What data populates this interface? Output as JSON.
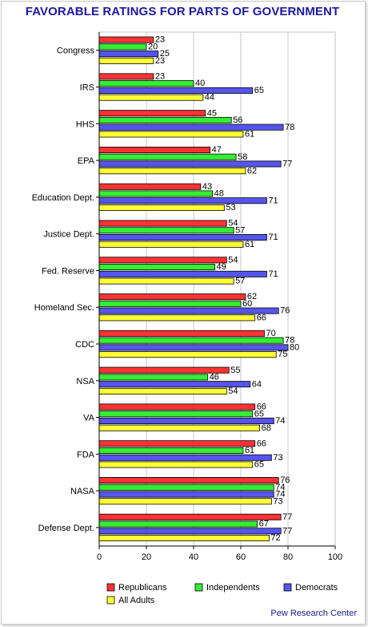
{
  "title": "FAVORABLE RATINGS FOR PARTS OF GOVERNMENT",
  "source": "Pew Research Center",
  "chart_data": {
    "type": "bar",
    "orientation": "horizontal",
    "categories": [
      "Congress",
      "IRS",
      "HHS",
      "EPA",
      "Education Dept.",
      "Justice Dept.",
      "Fed. Reserve",
      "Homeland Sec.",
      "CDC",
      "NSA",
      "VA",
      "FDA",
      "NASA",
      "Defense Dept."
    ],
    "series": [
      {
        "name": "Republicans",
        "color": "#ff3333",
        "values": [
          23,
          23,
          45,
          47,
          43,
          54,
          54,
          62,
          70,
          55,
          66,
          66,
          76,
          77
        ]
      },
      {
        "name": "Independents",
        "color": "#33ee33",
        "values": [
          20,
          40,
          56,
          58,
          48,
          57,
          49,
          60,
          78,
          46,
          65,
          61,
          74,
          67
        ]
      },
      {
        "name": "Democrats",
        "color": "#5555ee",
        "values": [
          25,
          65,
          78,
          77,
          71,
          71,
          71,
          76,
          80,
          64,
          74,
          73,
          74,
          77
        ]
      },
      {
        "name": "All Adults",
        "color": "#ffff33",
        "values": [
          23,
          44,
          61,
          62,
          53,
          61,
          57,
          66,
          75,
          54,
          68,
          65,
          73,
          72
        ]
      }
    ],
    "xlim": [
      0,
      100
    ],
    "xticks": [
      0,
      20,
      40,
      60,
      80,
      100
    ],
    "grid": true,
    "legend_position": "bottom"
  }
}
